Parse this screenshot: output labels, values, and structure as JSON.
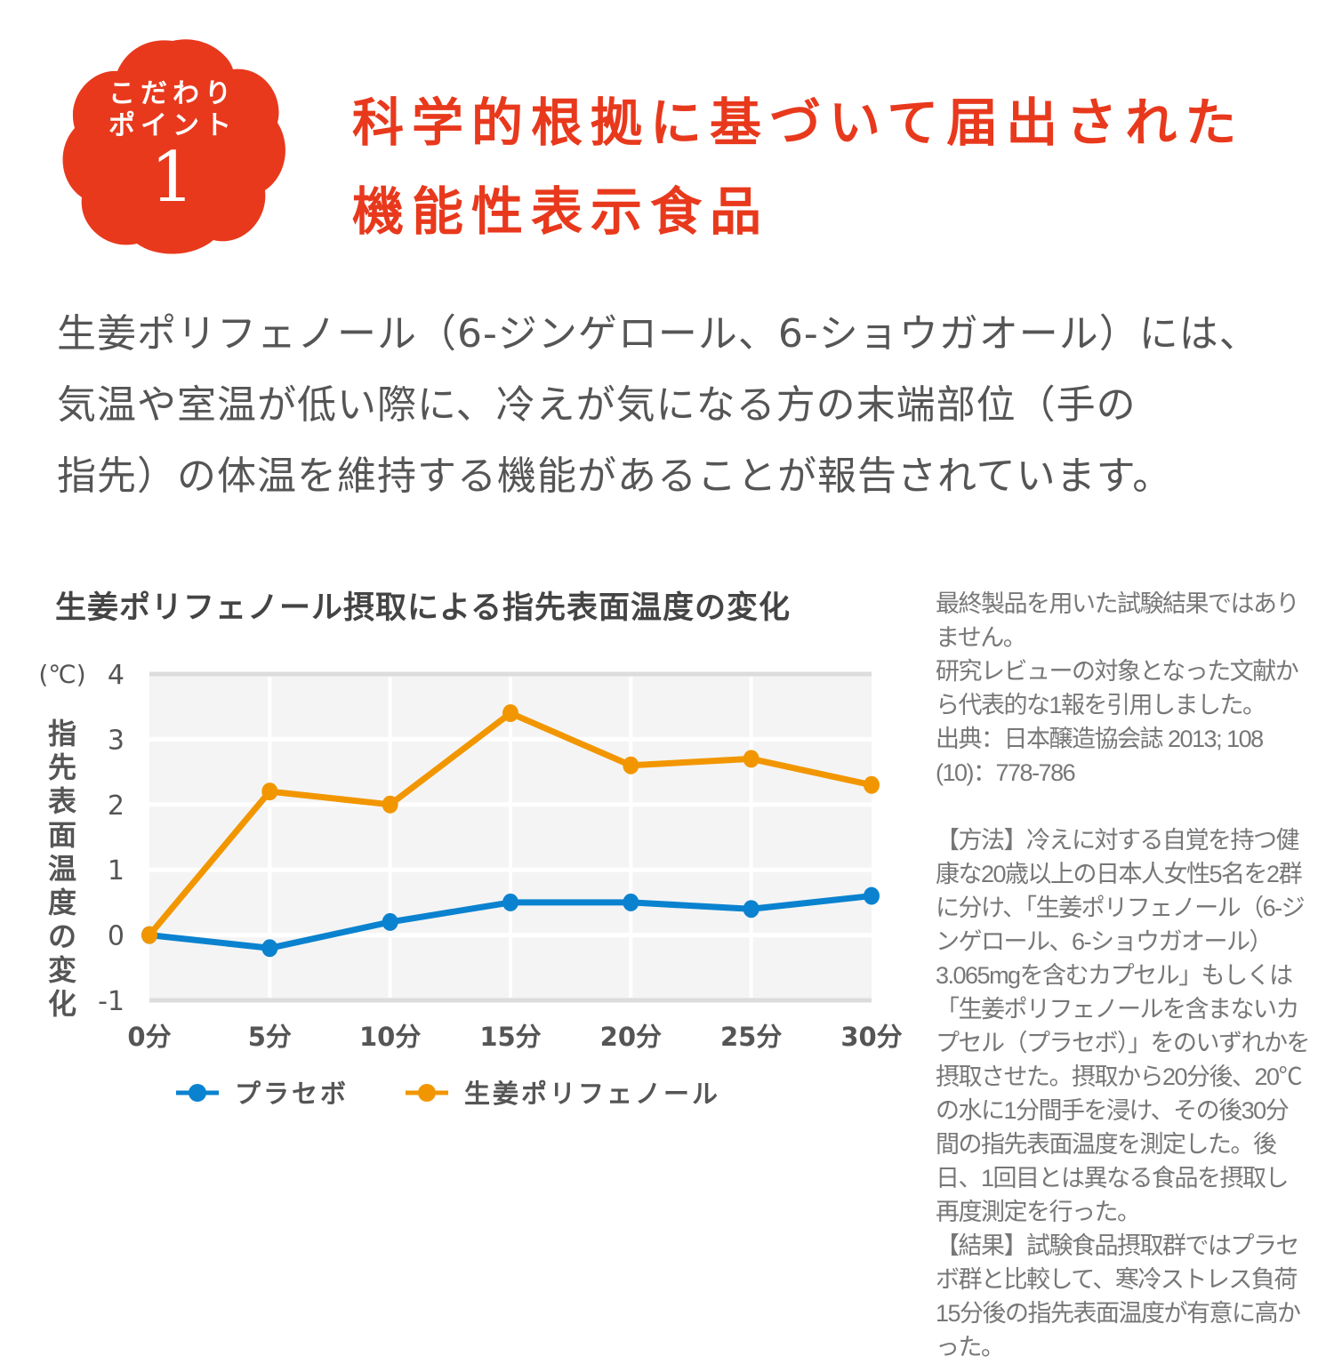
{
  "badge": {
    "line1": "こだわり",
    "line2": "ポイント",
    "number": "1",
    "color": "#e8391d"
  },
  "heading": {
    "line1": "科学的根拠に基づいて届出された",
    "line2": "機能性表示食品",
    "color": "#e8391d"
  },
  "body": {
    "lines": [
      "生姜ポリフェノール（6-ジンゲロール、6-ショウガオール）には、",
      "気温や室温が低い際に、冷えが気になる方の末端部位（手の",
      "指先）の体温を維持する機能があることが報告されています。"
    ]
  },
  "notes": {
    "disclaimer": "最終製品を用いた試験結果ではありません。",
    "citation_intro": "研究レビューの対象となった文献から代表的な1報を引用しました。",
    "source": "出典：日本醸造協会誌 2013; 108 (10)：778-786",
    "method": "【方法】冷えに対する自覚を持つ健康な20歳以上の日本人女性5名を2群に分け、「生姜ポリフェノール（6-ジンゲロール、6-ショウガオール）3.065mgを含むカプセル」もしくは「生姜ポリフェノールを含まないカプセル（プラセボ）」をのいずれかを摂取させた。摂取から20分後、20℃の水に1分間手を浸け、その後30分間の指先表面温度を測定した。後日、1回目とは異なる食品を摂取し再度測定を行った。",
    "result": "【結果】試験食品摂取群ではプラセボ群と比較して、寒冷ストレス負荷15分後の指先表面温度が有意に高かった。"
  },
  "chart_data": {
    "type": "line",
    "title": "生姜ポリフェノール摂取による指先表面温度の変化",
    "unit_label": "(℃)",
    "ylabel": "指先表面温度の変化",
    "xlabel": "",
    "categories": [
      "0分",
      "5分",
      "10分",
      "15分",
      "20分",
      "25分",
      "30分"
    ],
    "yticks": [
      "4",
      "3",
      "2",
      "1",
      "0",
      "-1"
    ],
    "ylim": [
      -1,
      4
    ],
    "grid": true,
    "legend_position": "bottom",
    "series": [
      {
        "name": "プラセボ",
        "color": "#0a82cf",
        "values": [
          0,
          -0.2,
          0.2,
          0.5,
          0.5,
          0.4,
          0.6
        ]
      },
      {
        "name": "生姜ポリフェノール",
        "color": "#f29600",
        "values": [
          0,
          2.2,
          2.0,
          3.4,
          2.6,
          2.7,
          2.3
        ]
      }
    ]
  }
}
